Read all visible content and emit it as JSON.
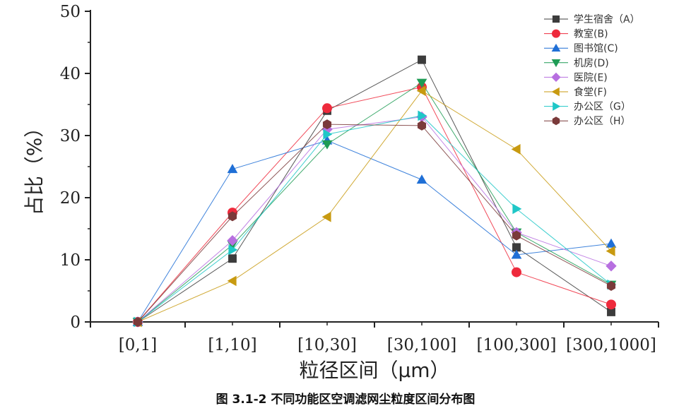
{
  "chart_data": {
    "type": "line",
    "categories": [
      "[0,1]",
      "[1,10]",
      "[10,30]",
      "[30,100]",
      "[100,300]",
      "[300,1000]"
    ],
    "xlabel": "粒径区间（μm）",
    "ylabel": "占比（%）",
    "ylim": [
      0,
      50
    ],
    "yticks": [
      0,
      10,
      20,
      30,
      40,
      50
    ],
    "grid": false,
    "legend_position": "top-right",
    "series": [
      {
        "name": "学生宿舍（A）",
        "marker": "square",
        "color": "#3c3c3c",
        "values": [
          0,
          10.2,
          34.0,
          42.2,
          12.0,
          1.6
        ]
      },
      {
        "name": "教室(B)",
        "marker": "circle",
        "color": "#ee2a3c",
        "values": [
          0,
          17.6,
          34.4,
          37.8,
          8.0,
          2.8
        ]
      },
      {
        "name": "图书馆(C)",
        "marker": "triangle-up",
        "color": "#1f6fd6",
        "values": [
          0,
          24.6,
          29.2,
          22.9,
          10.8,
          12.6
        ]
      },
      {
        "name": "机房(D)",
        "marker": "triangle-down",
        "color": "#1f9c55",
        "values": [
          0,
          12.4,
          28.6,
          38.5,
          14.4,
          6.0
        ]
      },
      {
        "name": "医院(E)",
        "marker": "diamond",
        "color": "#b76fe0",
        "values": [
          0,
          13.1,
          31.0,
          33.0,
          14.4,
          9.0
        ]
      },
      {
        "name": "食堂(F)",
        "marker": "triangle-left",
        "color": "#c89a10",
        "values": [
          0,
          6.6,
          16.9,
          37.2,
          27.8,
          11.4
        ]
      },
      {
        "name": "办公区（G）",
        "marker": "triangle-right",
        "color": "#1fc7c7",
        "values": [
          0,
          11.6,
          30.2,
          33.2,
          18.2,
          6.0
        ]
      },
      {
        "name": "办公区（H）",
        "marker": "hexagon",
        "color": "#7a3a3a",
        "values": [
          0,
          17.0,
          31.8,
          31.6,
          13.9,
          5.8
        ]
      }
    ]
  },
  "caption": "图 3.1-2  不同功能区空调滤网尘粒度区间分布图"
}
